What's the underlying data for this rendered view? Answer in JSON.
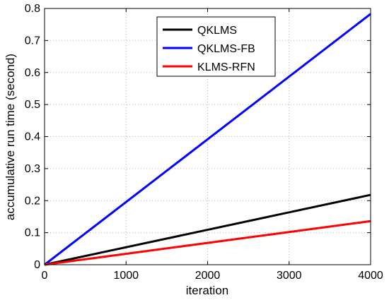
{
  "chart_data": {
    "type": "line",
    "xlabel": "iteration",
    "ylabel": "accumulative run time (second)",
    "xlim": [
      0,
      4000
    ],
    "ylim": [
      0,
      0.8
    ],
    "xticks": [
      "0",
      "1000",
      "2000",
      "3000",
      "4000"
    ],
    "yticks": [
      "0",
      "0.1",
      "0.2",
      "0.3",
      "0.4",
      "0.5",
      "0.6",
      "0.7",
      "0.8"
    ],
    "grid": true,
    "legend_position": "top-center",
    "series": [
      {
        "name": "QKLMS",
        "color": "#000000",
        "x": [
          0,
          4000
        ],
        "y": [
          0,
          0.218
        ]
      },
      {
        "name": "QKLMS-FB",
        "color": "#0000ff",
        "x": [
          0,
          4000
        ],
        "y": [
          0,
          0.783
        ]
      },
      {
        "name": "KLMS-RFN",
        "color": "#ff0000",
        "x": [
          0,
          4000
        ],
        "y": [
          0,
          0.136
        ]
      }
    ]
  }
}
